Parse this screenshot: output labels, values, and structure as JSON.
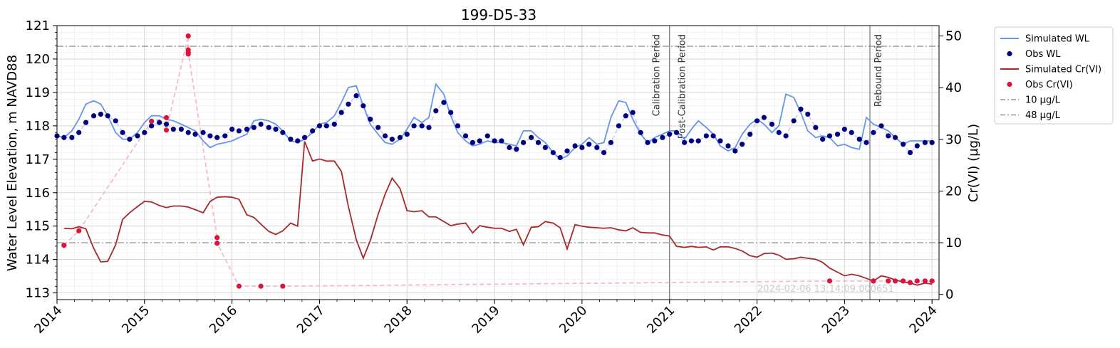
{
  "chart_data": {
    "type": "line",
    "title": "199-D5-33",
    "ylabel": "Water Level Elevation, m NAVD88",
    "y2label": "Cr(VI) (µg/L)",
    "xlim": [
      2014.0,
      2024.08
    ],
    "ylim": [
      112.8,
      121.0
    ],
    "y2lim": [
      -1.0,
      52.0
    ],
    "x_ticks": [
      2014,
      2015,
      2016,
      2017,
      2018,
      2019,
      2020,
      2021,
      2022,
      2023,
      2024
    ],
    "x_tick_labels": [
      "2014",
      "2015",
      "2016",
      "2017",
      "2018",
      "2019",
      "2020",
      "2021",
      "2022",
      "2023",
      "2024"
    ],
    "y_ticks": [
      113,
      114,
      115,
      116,
      117,
      118,
      119,
      120,
      121
    ],
    "y_tick_labels": [
      "113",
      "114",
      "115",
      "116",
      "117",
      "118",
      "119",
      "120",
      "121"
    ],
    "y2_ticks": [
      0,
      10,
      20,
      30,
      40,
      50
    ],
    "y2_tick_labels": [
      "0",
      "10",
      "20",
      "30",
      "40",
      "50"
    ],
    "grid": true,
    "legend_position": "outside-right",
    "legend": [
      {
        "label": "Simulated WL",
        "kind": "line",
        "color": "#6495ED"
      },
      {
        "label": "Obs WL",
        "kind": "marker",
        "color": "#000080"
      },
      {
        "label": "Simulated Cr(VI)",
        "kind": "line",
        "color": "#A52A2A"
      },
      {
        "label": "Obs Cr(VI)",
        "kind": "marker",
        "color": "#DC143C"
      },
      {
        "label": "10 µg/L",
        "kind": "dashdot",
        "color": "#808080"
      },
      {
        "label": "48 µg/L",
        "kind": "dashdot",
        "color": "#808080"
      }
    ],
    "hlines_right_axis": [
      10,
      48
    ],
    "period_lines": [
      {
        "x": 2021.0,
        "labels": [
          "Calibration Period",
          "Post-Calibration Period"
        ]
      },
      {
        "x": 2023.29,
        "labels": [
          "Rebound Period"
        ]
      }
    ],
    "watermark": "2024-02-06 13:14:09.000651",
    "series": [
      {
        "name": "Simulated WL",
        "axis": "left",
        "color": "#6495ED",
        "x": [
          2014.0,
          2014.08,
          2014.17,
          2014.25,
          2014.33,
          2014.42,
          2014.5,
          2014.58,
          2014.67,
          2014.75,
          2014.83,
          2014.92,
          2015.0,
          2015.08,
          2015.17,
          2015.25,
          2015.33,
          2015.42,
          2015.5,
          2015.58,
          2015.67,
          2015.75,
          2015.83,
          2015.92,
          2016.0,
          2016.08,
          2016.17,
          2016.25,
          2016.33,
          2016.42,
          2016.5,
          2016.58,
          2016.67,
          2016.75,
          2016.83,
          2016.92,
          2017.0,
          2017.08,
          2017.17,
          2017.25,
          2017.33,
          2017.42,
          2017.5,
          2017.58,
          2017.67,
          2017.75,
          2017.83,
          2017.92,
          2018.0,
          2018.08,
          2018.17,
          2018.25,
          2018.33,
          2018.42,
          2018.5,
          2018.58,
          2018.67,
          2018.75,
          2018.83,
          2018.92,
          2019.0,
          2019.08,
          2019.17,
          2019.25,
          2019.33,
          2019.42,
          2019.5,
          2019.58,
          2019.67,
          2019.75,
          2019.83,
          2019.92,
          2020.0,
          2020.08,
          2020.17,
          2020.25,
          2020.33,
          2020.42,
          2020.5,
          2020.58,
          2020.67,
          2020.75,
          2020.83,
          2020.92,
          2021.0,
          2021.08,
          2021.17,
          2021.25,
          2021.33,
          2021.42,
          2021.5,
          2021.58,
          2021.67,
          2021.75,
          2021.83,
          2021.92,
          2022.0,
          2022.08,
          2022.17,
          2022.25,
          2022.33,
          2022.42,
          2022.5,
          2022.58,
          2022.67,
          2022.75,
          2022.83,
          2022.92,
          2023.0,
          2023.08,
          2023.17,
          2023.25,
          2023.33,
          2023.42,
          2023.5,
          2023.58,
          2023.67,
          2023.75,
          2023.83,
          2023.92,
          2024.0
        ],
        "y": [
          117.7,
          117.65,
          117.85,
          118.2,
          118.65,
          118.75,
          118.65,
          118.3,
          117.8,
          117.6,
          117.6,
          117.8,
          118.1,
          118.3,
          118.3,
          118.2,
          118.15,
          118.05,
          117.95,
          117.85,
          117.55,
          117.35,
          117.45,
          117.5,
          117.55,
          117.65,
          117.75,
          118.15,
          118.2,
          118.15,
          118.05,
          117.85,
          117.55,
          117.5,
          117.6,
          117.8,
          118.05,
          118.1,
          118.3,
          118.7,
          119.15,
          119.2,
          118.6,
          118.05,
          117.75,
          117.5,
          117.45,
          117.6,
          117.9,
          118.25,
          118.1,
          118.25,
          119.25,
          118.95,
          118.3,
          117.8,
          117.55,
          117.4,
          117.45,
          117.55,
          117.5,
          117.5,
          117.45,
          117.4,
          117.85,
          117.85,
          117.65,
          117.5,
          117.2,
          117.0,
          117.1,
          117.35,
          117.45,
          117.65,
          117.45,
          117.5,
          118.25,
          118.75,
          118.7,
          118.2,
          117.75,
          117.5,
          117.65,
          117.75,
          117.85,
          117.85,
          117.6,
          117.9,
          118.15,
          117.95,
          117.75,
          117.4,
          117.25,
          117.35,
          117.75,
          118.05,
          118.2,
          118.05,
          117.8,
          118.0,
          118.95,
          118.85,
          118.4,
          117.85,
          117.65,
          117.7,
          117.65,
          117.4,
          117.45,
          117.35,
          117.3,
          118.25,
          118.05,
          117.95,
          117.85,
          117.65,
          117.45,
          117.55,
          117.55,
          117.55,
          117.55
        ]
      },
      {
        "name": "Obs WL",
        "axis": "left",
        "color": "#000080",
        "x": [
          2014.0,
          2014.08,
          2014.17,
          2014.25,
          2014.33,
          2014.42,
          2014.5,
          2014.58,
          2014.67,
          2014.75,
          2014.83,
          2014.92,
          2015.0,
          2015.08,
          2015.17,
          2015.25,
          2015.33,
          2015.42,
          2015.5,
          2015.58,
          2015.67,
          2015.75,
          2015.83,
          2015.92,
          2016.0,
          2016.08,
          2016.17,
          2016.25,
          2016.33,
          2016.42,
          2016.5,
          2016.58,
          2016.67,
          2016.75,
          2016.83,
          2016.92,
          2017.0,
          2017.08,
          2017.17,
          2017.25,
          2017.33,
          2017.42,
          2017.5,
          2017.58,
          2017.67,
          2017.75,
          2017.83,
          2017.92,
          2018.0,
          2018.08,
          2018.17,
          2018.25,
          2018.33,
          2018.42,
          2018.5,
          2018.58,
          2018.67,
          2018.75,
          2018.83,
          2018.92,
          2019.0,
          2019.08,
          2019.17,
          2019.25,
          2019.33,
          2019.42,
          2019.5,
          2019.58,
          2019.67,
          2019.75,
          2019.83,
          2019.92,
          2020.0,
          2020.08,
          2020.17,
          2020.25,
          2020.33,
          2020.42,
          2020.5,
          2020.58,
          2020.67,
          2020.75,
          2020.83,
          2020.92,
          2021.0,
          2021.08,
          2021.17,
          2021.25,
          2021.33,
          2021.42,
          2021.5,
          2021.58,
          2021.67,
          2021.75,
          2021.83,
          2021.92,
          2022.0,
          2022.08,
          2022.17,
          2022.25,
          2022.33,
          2022.42,
          2022.5,
          2022.58,
          2022.67,
          2022.75,
          2022.83,
          2022.92,
          2023.0,
          2023.08,
          2023.17,
          2023.25,
          2023.33,
          2023.42,
          2023.5,
          2023.58,
          2023.67,
          2023.75,
          2023.83,
          2023.92,
          2024.0
        ],
        "y": [
          117.7,
          117.65,
          117.65,
          117.8,
          118.1,
          118.3,
          118.35,
          118.3,
          118.15,
          117.8,
          117.6,
          117.7,
          117.8,
          118.0,
          118.1,
          118.05,
          117.9,
          117.9,
          117.8,
          117.75,
          117.8,
          117.7,
          117.65,
          117.7,
          117.9,
          117.85,
          117.9,
          117.95,
          118.05,
          117.95,
          117.9,
          117.8,
          117.6,
          117.55,
          117.65,
          117.85,
          118.0,
          118.0,
          118.05,
          118.4,
          118.65,
          118.9,
          118.6,
          118.2,
          117.95,
          117.7,
          117.6,
          117.65,
          117.75,
          118.0,
          118.0,
          117.95,
          118.45,
          118.7,
          118.4,
          118.0,
          117.7,
          117.5,
          117.55,
          117.7,
          117.55,
          117.55,
          117.35,
          117.3,
          117.5,
          117.65,
          117.5,
          117.35,
          117.2,
          117.05,
          117.25,
          117.4,
          117.35,
          117.45,
          117.35,
          117.2,
          117.5,
          118.0,
          118.3,
          118.4,
          117.8,
          117.5,
          117.55,
          117.65,
          117.75,
          117.8,
          117.5,
          117.55,
          117.55,
          117.7,
          117.7,
          117.55,
          117.4,
          117.25,
          117.45,
          117.75,
          118.15,
          118.25,
          118.05,
          117.8,
          117.7,
          118.15,
          118.5,
          118.35,
          117.95,
          117.6,
          117.7,
          117.75,
          117.9,
          117.8,
          117.6,
          117.5,
          117.8,
          118.0,
          117.7,
          117.65,
          117.45,
          117.2,
          117.4,
          117.5,
          117.5
        ]
      },
      {
        "name": "Simulated Cr(VI)",
        "axis": "right",
        "color": "#A52A2A",
        "x": [
          2014.08,
          2014.17,
          2014.25,
          2014.33,
          2014.42,
          2014.5,
          2014.58,
          2014.67,
          2014.75,
          2014.83,
          2014.92,
          2015.0,
          2015.08,
          2015.17,
          2015.25,
          2015.33,
          2015.42,
          2015.5,
          2015.58,
          2015.67,
          2015.75,
          2015.83,
          2015.92,
          2016.0,
          2016.08,
          2016.17,
          2016.25,
          2016.33,
          2016.42,
          2016.5,
          2016.58,
          2016.67,
          2016.75,
          2016.83,
          2016.92,
          2017.0,
          2017.08,
          2017.17,
          2017.25,
          2017.33,
          2017.42,
          2017.5,
          2017.58,
          2017.67,
          2017.75,
          2017.83,
          2017.92,
          2018.0,
          2018.08,
          2018.17,
          2018.25,
          2018.33,
          2018.42,
          2018.5,
          2018.58,
          2018.67,
          2018.75,
          2018.83,
          2018.92,
          2019.0,
          2019.08,
          2019.17,
          2019.25,
          2019.33,
          2019.42,
          2019.5,
          2019.58,
          2019.67,
          2019.75,
          2019.83,
          2019.92,
          2020.0,
          2020.08,
          2020.17,
          2020.25,
          2020.33,
          2020.42,
          2020.5,
          2020.58,
          2020.67,
          2020.75,
          2020.83,
          2020.92,
          2021.0,
          2021.08,
          2021.17,
          2021.25,
          2021.33,
          2021.42,
          2021.5,
          2021.58,
          2021.67,
          2021.75,
          2021.83,
          2021.92,
          2022.0,
          2022.08,
          2022.17,
          2022.25,
          2022.33,
          2022.42,
          2022.5,
          2022.58,
          2022.67,
          2022.75,
          2022.83,
          2022.92,
          2023.0,
          2023.08,
          2023.17,
          2023.25,
          2023.33,
          2023.42,
          2023.5,
          2023.58,
          2023.67,
          2023.75,
          2023.83,
          2023.92,
          2024.0
        ],
        "y": [
          12.8,
          12.7,
          13.1,
          12.7,
          8.9,
          6.3,
          6.4,
          9.6,
          14.5,
          15.8,
          17.0,
          18.0,
          17.9,
          17.2,
          16.8,
          17.1,
          17.1,
          16.9,
          16.4,
          15.8,
          18.0,
          18.8,
          18.9,
          18.8,
          18.4,
          15.4,
          14.9,
          13.6,
          12.2,
          11.6,
          12.3,
          13.8,
          13.2,
          29.6,
          25.8,
          26.2,
          25.8,
          25.8,
          23.8,
          17.0,
          10.6,
          7.0,
          10.4,
          15.5,
          19.4,
          22.5,
          20.5,
          16.2,
          16.0,
          16.2,
          15.0,
          15.0,
          14.1,
          13.3,
          13.6,
          13.8,
          11.9,
          13.3,
          13.0,
          12.8,
          12.8,
          12.2,
          12.6,
          9.6,
          13.0,
          13.1,
          14.1,
          13.8,
          12.9,
          8.8,
          13.5,
          13.2,
          13.0,
          12.9,
          12.8,
          12.9,
          12.5,
          12.3,
          12.9,
          12.0,
          11.9,
          11.9,
          11.5,
          11.3,
          9.3,
          9.1,
          9.3,
          9.1,
          9.2,
          8.6,
          9.2,
          9.2,
          8.9,
          8.4,
          7.5,
          7.2,
          7.9,
          8.0,
          7.6,
          6.8,
          6.9,
          7.2,
          7.0,
          6.8,
          6.2,
          5.1,
          4.3,
          3.6,
          3.9,
          3.6,
          3.1,
          2.6,
          3.6,
          3.3,
          2.8,
          2.4,
          2.2,
          1.8,
          2.2,
          2.0
        ]
      },
      {
        "name": "Obs Cr(VI)",
        "axis": "right",
        "color": "#DC143C",
        "x": [
          2014.08,
          2014.25,
          2015.08,
          2015.25,
          2015.25,
          2015.5,
          2015.5,
          2015.5,
          2015.5,
          2015.83,
          2015.83,
          2016.08,
          2016.33,
          2016.58,
          2022.83,
          2023.33,
          2023.33,
          2023.5,
          2023.58,
          2023.67,
          2023.75,
          2023.83,
          2023.92,
          2024.0
        ],
        "y": [
          9.5,
          12.3,
          33.5,
          34.2,
          31.8,
          50.0,
          46.5,
          47.3,
          46.8,
          11.0,
          9.9,
          1.6,
          1.6,
          1.6,
          2.6,
          2.6,
          2.6,
          2.6,
          2.6,
          2.6,
          2.3,
          2.6,
          2.6,
          2.6
        ]
      }
    ]
  }
}
